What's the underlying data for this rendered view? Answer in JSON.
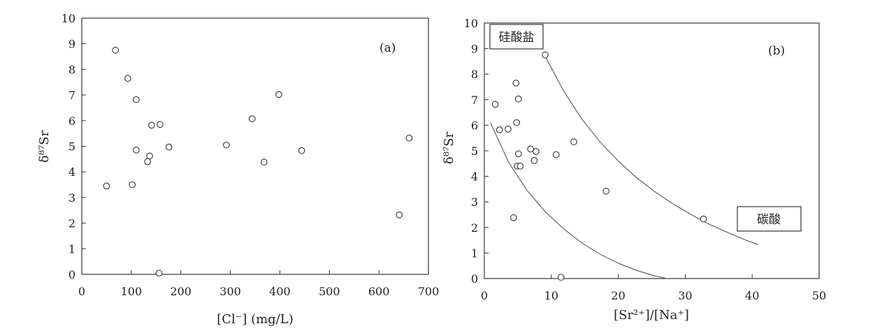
{
  "chart_data": [
    {
      "type": "scatter",
      "panel_label": "(a)",
      "xlabel": "[Cl⁻] (mg/L)",
      "ylabel": "δ⁸⁷Sr",
      "xlim": [
        0,
        700
      ],
      "ylim": [
        0,
        10
      ],
      "xticks": [
        "0",
        "100",
        "200",
        "300",
        "400",
        "500",
        "600",
        "700"
      ],
      "yticks": [
        "0",
        "1",
        "2",
        "3",
        "4",
        "5",
        "6",
        "7",
        "8",
        "9",
        "10"
      ],
      "grid": false,
      "marker": "open-circle",
      "points": [
        {
          "x": 50,
          "y": 3.45
        },
        {
          "x": 68,
          "y": 8.75
        },
        {
          "x": 93,
          "y": 7.65
        },
        {
          "x": 102,
          "y": 3.5
        },
        {
          "x": 110,
          "y": 6.82
        },
        {
          "x": 110,
          "y": 4.85
        },
        {
          "x": 133,
          "y": 4.4
        },
        {
          "x": 137,
          "y": 4.62
        },
        {
          "x": 141,
          "y": 5.82
        },
        {
          "x": 156,
          "y": 0.05
        },
        {
          "x": 158,
          "y": 5.85
        },
        {
          "x": 176,
          "y": 4.97
        },
        {
          "x": 292,
          "y": 5.05
        },
        {
          "x": 344,
          "y": 6.07
        },
        {
          "x": 368,
          "y": 4.38
        },
        {
          "x": 398,
          "y": 7.02
        },
        {
          "x": 444,
          "y": 4.83
        },
        {
          "x": 641,
          "y": 2.32
        },
        {
          "x": 661,
          "y": 5.32
        }
      ]
    },
    {
      "type": "scatter",
      "panel_label": "(b)",
      "xlabel": "[Sr²⁺]/[Na⁺]",
      "ylabel": "δ⁸⁷Sr",
      "xlim": [
        0,
        55
      ],
      "ylim": [
        0,
        10
      ],
      "xticks": [
        "0",
        "10",
        "20",
        "30",
        "40",
        "50"
      ],
      "yticks": [
        "0",
        "1",
        "2",
        "3",
        "4",
        "5",
        "6",
        "7",
        "8",
        "9",
        "10"
      ],
      "grid": false,
      "marker": "open-circle",
      "region_labels": {
        "silicate": "硅酸盐",
        "carbonate": "碳酸"
      },
      "points": [
        {
          "x": 1.8,
          "y": 6.82
        },
        {
          "x": 2.5,
          "y": 5.82
        },
        {
          "x": 3.9,
          "y": 5.85
        },
        {
          "x": 4.8,
          "y": 2.38
        },
        {
          "x": 5.2,
          "y": 7.65
        },
        {
          "x": 5.3,
          "y": 6.1
        },
        {
          "x": 5.4,
          "y": 4.4
        },
        {
          "x": 5.6,
          "y": 4.88
        },
        {
          "x": 5.6,
          "y": 7.03
        },
        {
          "x": 5.9,
          "y": 4.4
        },
        {
          "x": 7.6,
          "y": 5.07
        },
        {
          "x": 8.2,
          "y": 4.62
        },
        {
          "x": 8.5,
          "y": 4.97
        },
        {
          "x": 10.0,
          "y": 8.75
        },
        {
          "x": 11.8,
          "y": 4.85
        },
        {
          "x": 12.6,
          "y": 0.05
        },
        {
          "x": 14.7,
          "y": 5.35
        },
        {
          "x": 20.0,
          "y": 3.42
        },
        {
          "x": 36.0,
          "y": 2.33
        }
      ],
      "curves": [
        {
          "x": [
            1,
            4,
            7,
            10,
            13,
            16,
            19,
            22,
            25,
            28,
            30
          ],
          "y": [
            6.1,
            4.55,
            3.45,
            2.62,
            1.95,
            1.4,
            0.95,
            0.6,
            0.32,
            0.1,
            0.0
          ]
        },
        {
          "x": [
            10,
            13,
            16,
            19,
            22,
            25,
            28,
            31,
            34,
            37,
            40,
            43,
            45
          ],
          "y": [
            8.7,
            7.35,
            6.25,
            5.35,
            4.6,
            3.95,
            3.4,
            2.92,
            2.5,
            2.12,
            1.8,
            1.5,
            1.33
          ]
        }
      ]
    }
  ]
}
